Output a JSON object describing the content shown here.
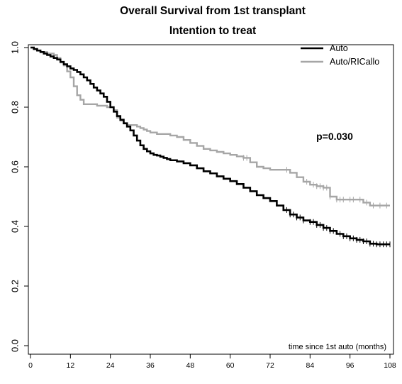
{
  "chart_data": {
    "type": "line",
    "title": "Overall Survival from 1st transplant",
    "subtitle": "Intention to treat",
    "xlabel": "time since 1st auto (months)",
    "ylabel": "",
    "xlim": [
      0,
      108
    ],
    "ylim": [
      0.0,
      1.0
    ],
    "x_ticks": [
      0,
      12,
      24,
      36,
      48,
      60,
      72,
      84,
      96,
      108
    ],
    "x_tick_labels": [
      "0",
      "12",
      "24",
      "36",
      "48",
      "60",
      "72",
      "84",
      "96",
      "108"
    ],
    "y_ticks": [
      0.0,
      0.2,
      0.4,
      0.6,
      0.8,
      1.0
    ],
    "y_tick_labels": [
      "0.0",
      "0.2",
      "0.4",
      "0.6",
      "0.8",
      "1.0"
    ],
    "grid": false,
    "legend_position": "top-right",
    "annotation": "p=0.030",
    "series": [
      {
        "name": "Auto",
        "color": "#000000",
        "step": true,
        "x": [
          0,
          1,
          2,
          3,
          4,
          5,
          6,
          7,
          8,
          9,
          10,
          11,
          12,
          13,
          14,
          15,
          16,
          17,
          18,
          19,
          20,
          21,
          22,
          23,
          24,
          25,
          26,
          27,
          28,
          29,
          30,
          31,
          32,
          33,
          34,
          35,
          36,
          37,
          38,
          39,
          40,
          41,
          42,
          44,
          46,
          48,
          50,
          52,
          54,
          56,
          58,
          60,
          62,
          64,
          66,
          68,
          70,
          72,
          74,
          76,
          78,
          80,
          82,
          84,
          86,
          88,
          90,
          92,
          94,
          96,
          98,
          100,
          102,
          104,
          106,
          108
        ],
        "y": [
          1.0,
          0.995,
          0.99,
          0.985,
          0.98,
          0.975,
          0.97,
          0.965,
          0.96,
          0.952,
          0.944,
          0.937,
          0.93,
          0.925,
          0.918,
          0.91,
          0.9,
          0.89,
          0.878,
          0.866,
          0.856,
          0.846,
          0.835,
          0.818,
          0.8,
          0.785,
          0.77,
          0.758,
          0.746,
          0.735,
          0.722,
          0.705,
          0.688,
          0.672,
          0.66,
          0.652,
          0.645,
          0.64,
          0.638,
          0.634,
          0.63,
          0.626,
          0.622,
          0.618,
          0.612,
          0.605,
          0.595,
          0.585,
          0.578,
          0.568,
          0.56,
          0.552,
          0.542,
          0.53,
          0.518,
          0.505,
          0.495,
          0.485,
          0.47,
          0.455,
          0.44,
          0.43,
          0.42,
          0.415,
          0.405,
          0.395,
          0.385,
          0.375,
          0.367,
          0.36,
          0.355,
          0.35,
          0.342,
          0.34,
          0.34,
          0.34
        ],
        "censor_x": [
          77,
          78,
          79,
          80,
          81,
          82,
          84,
          85,
          86,
          87,
          88,
          89,
          90,
          91,
          93,
          94,
          95,
          96,
          97,
          98,
          99,
          100,
          101,
          102,
          103,
          104,
          105,
          106,
          107,
          108
        ]
      },
      {
        "name": "Auto/RICallo",
        "color": "#a6a6a6",
        "step": true,
        "x": [
          0,
          1,
          2,
          3,
          4,
          5,
          6,
          7,
          8,
          9,
          10,
          11,
          12,
          13,
          14,
          15,
          16,
          17,
          18,
          19,
          20,
          21,
          22,
          23,
          24,
          25,
          26,
          27,
          28,
          29,
          30,
          31,
          32,
          33,
          34,
          35,
          36,
          38,
          40,
          42,
          44,
          46,
          48,
          50,
          52,
          54,
          56,
          58,
          60,
          62,
          64,
          66,
          68,
          70,
          72,
          74,
          76,
          78,
          80,
          82,
          84,
          86,
          88,
          90,
          92,
          94,
          96,
          98,
          100,
          102,
          104,
          106,
          108
        ],
        "y": [
          1.0,
          0.995,
          0.99,
          0.985,
          0.985,
          0.98,
          0.98,
          0.975,
          0.965,
          0.95,
          0.94,
          0.92,
          0.9,
          0.87,
          0.84,
          0.825,
          0.81,
          0.81,
          0.81,
          0.81,
          0.805,
          0.805,
          0.805,
          0.8,
          0.8,
          0.79,
          0.765,
          0.755,
          0.745,
          0.74,
          0.74,
          0.74,
          0.735,
          0.73,
          0.725,
          0.72,
          0.715,
          0.71,
          0.71,
          0.705,
          0.7,
          0.69,
          0.68,
          0.67,
          0.66,
          0.655,
          0.65,
          0.645,
          0.64,
          0.635,
          0.63,
          0.615,
          0.6,
          0.595,
          0.59,
          0.59,
          0.59,
          0.58,
          0.565,
          0.55,
          0.54,
          0.535,
          0.53,
          0.5,
          0.49,
          0.49,
          0.49,
          0.49,
          0.48,
          0.47,
          0.47,
          0.47,
          0.47
        ],
        "censor_x": [
          64,
          65,
          77,
          83,
          85,
          86,
          87,
          88,
          89,
          90,
          92,
          93,
          94,
          96,
          97,
          99,
          101,
          103,
          105,
          107
        ]
      }
    ]
  }
}
